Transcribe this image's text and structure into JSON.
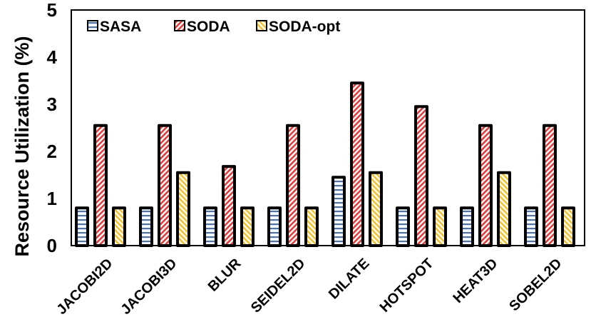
{
  "chart_data": {
    "type": "bar",
    "title": "",
    "xlabel": "",
    "ylabel": "Resource Utilization (%)",
    "ylim": [
      0,
      5
    ],
    "yticks": [
      0,
      1,
      2,
      3,
      4,
      5
    ],
    "grid": false,
    "legend_position": "top-left",
    "categories": [
      "JACOBI2D",
      "JACOBI3D",
      "BLUR",
      "SEIDEL2D",
      "DILATE",
      "HOTSPOT",
      "HEAT3D",
      "SOBEL2D"
    ],
    "series": [
      {
        "name": "SASA",
        "color": "#4472C4",
        "pattern": "horizontal-stripes",
        "values": [
          0.8,
          0.8,
          0.8,
          0.8,
          1.45,
          0.8,
          0.8,
          0.8
        ]
      },
      {
        "name": "SODA",
        "color": "#E03C3C",
        "pattern": "diagonal-stripes",
        "values": [
          2.55,
          2.55,
          1.68,
          2.55,
          3.45,
          2.95,
          2.55,
          2.55
        ]
      },
      {
        "name": "SODA-opt",
        "color": "#F2C12E",
        "pattern": "diagonal-stripes",
        "values": [
          0.8,
          1.55,
          0.8,
          0.8,
          1.55,
          0.8,
          1.55,
          0.8
        ]
      }
    ]
  }
}
